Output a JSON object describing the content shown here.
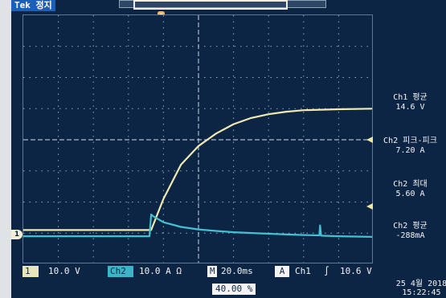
{
  "window": {
    "title": "Tek 정지"
  },
  "colors": {
    "background": "#0d2545",
    "grid": "#c9d2dc",
    "ch1_trace": "#f0eab0",
    "ch2_trace": "#43c1d3"
  },
  "measurements": [
    {
      "label": "Ch1 평균",
      "value": "14.6 V"
    },
    {
      "label": "Ch2 피크-피크",
      "value": "7.20 A"
    },
    {
      "label": "Ch2 최대",
      "value": "5.60 A"
    },
    {
      "label": "Ch2 평균",
      "value": "-288mA"
    }
  ],
  "ground_marker": "1",
  "status_bar": {
    "ch1_tag": "1",
    "ch1_scale": "10.0 V",
    "ch2_tag": "Ch2",
    "ch2_scale": "10.0 A Ω",
    "timebase_tag": "M",
    "timebase": "20.0ms",
    "trigger_mode": "A",
    "trigger_source": "Ch1",
    "trigger_slope": "∫",
    "trigger_level": "10.6 V"
  },
  "position": "40.00 %",
  "clock": {
    "date": "25 4월 2018",
    "time": "15:22:45"
  },
  "chart_data": {
    "type": "line",
    "x_divisions": 10,
    "y_divisions": 8,
    "time_per_div": "20.0ms",
    "series": [
      {
        "name": "Ch1",
        "x": [
          0,
          3.65,
          4.0,
          4.5,
          5.0,
          5.5,
          6.0,
          6.5,
          7.0,
          7.5,
          8.0,
          9.0,
          10.0
        ],
        "values": [
          -2.9,
          -2.9,
          -1.9,
          -0.8,
          -0.2,
          0.2,
          0.5,
          0.7,
          0.82,
          0.9,
          0.95,
          0.98,
          1.0
        ]
      },
      {
        "name": "Ch2",
        "x": [
          0,
          3.6,
          3.65,
          3.7,
          4.0,
          4.5,
          5.0,
          5.5,
          6.0,
          7.0,
          8.0,
          8.45,
          8.47,
          8.5,
          9.0,
          10.0
        ],
        "values": [
          -3.1,
          -3.1,
          -2.4,
          -2.45,
          -2.65,
          -2.8,
          -2.88,
          -2.93,
          -2.97,
          -3.02,
          -3.06,
          -3.07,
          -2.75,
          -3.08,
          -3.1,
          -3.12
        ]
      }
    ]
  }
}
